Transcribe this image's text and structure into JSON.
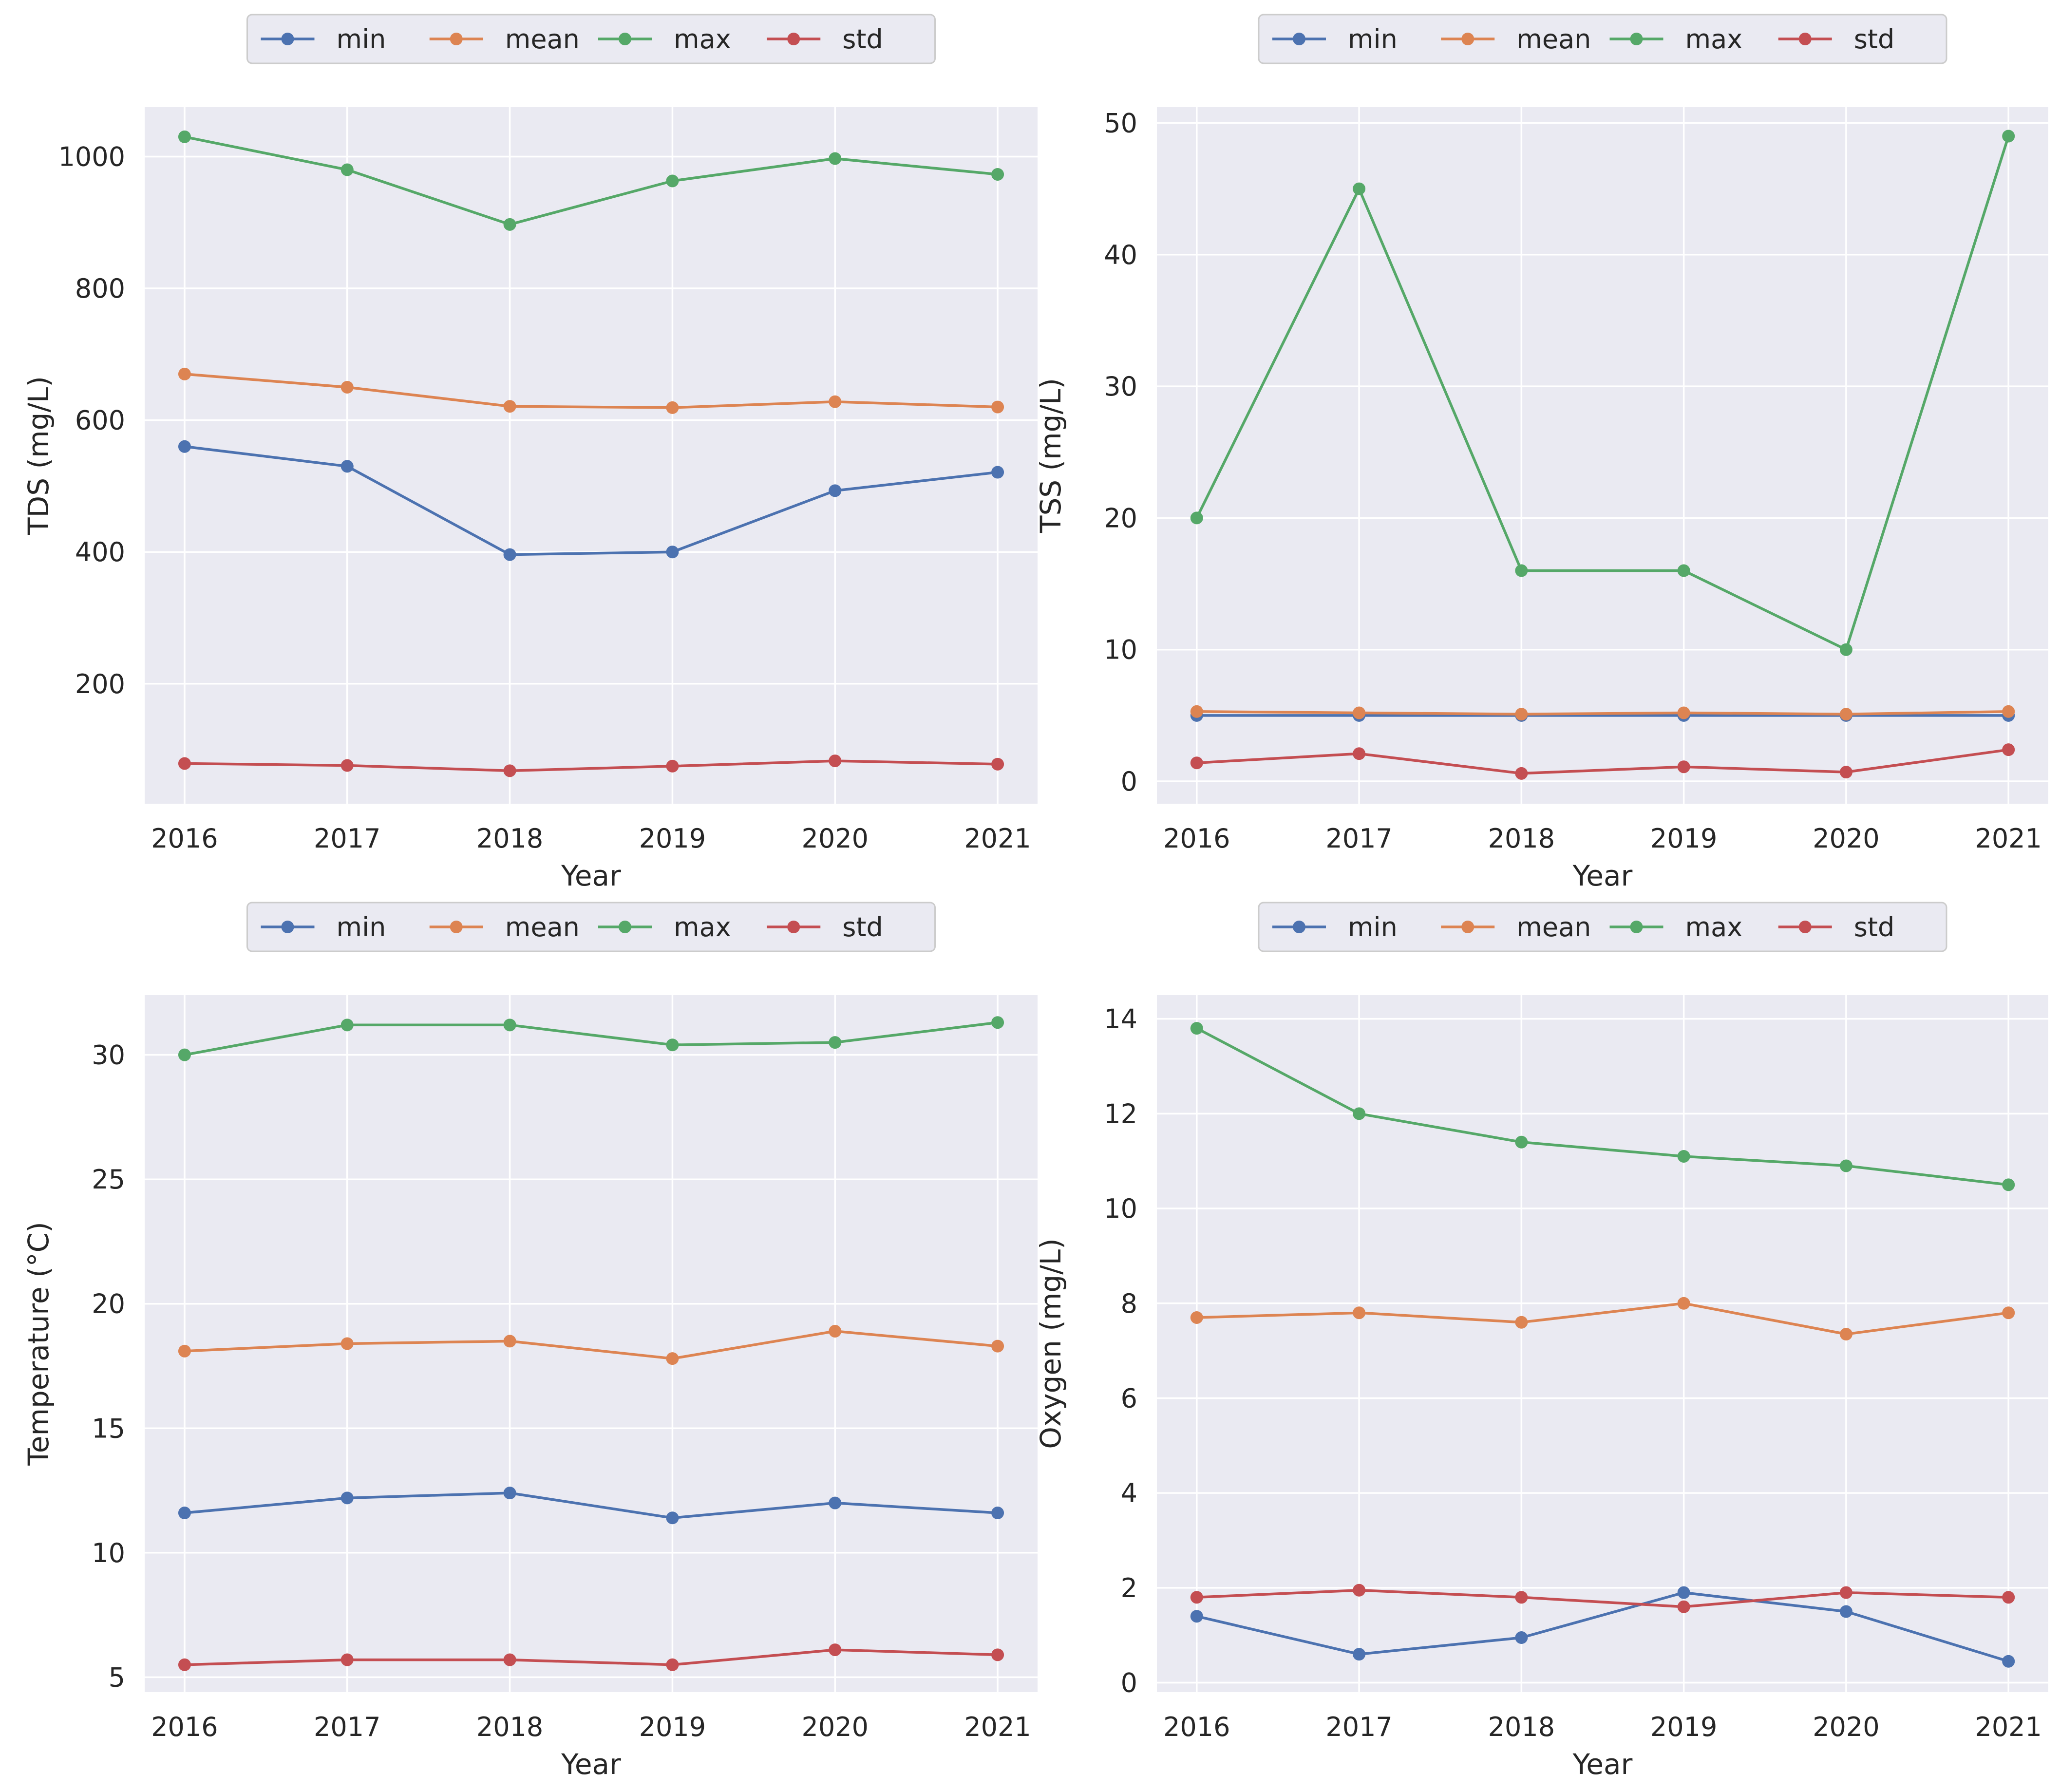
{
  "colors": {
    "plot_background": "#eaeaf2",
    "grid": "#ffffff",
    "text": "#262626",
    "legend_background": "#eaeaf2",
    "legend_border": "#cccccc",
    "series": {
      "min": "#4c72b0",
      "mean": "#dd8452",
      "max": "#55a868",
      "std": "#c44e52"
    }
  },
  "chart_data": [
    {
      "type": "line",
      "xlabel": "Year",
      "ylabel": "TDS (mg/L)",
      "x": [
        "2016",
        "2017",
        "2018",
        "2019",
        "2020",
        "2021"
      ],
      "yticks": [
        200,
        400,
        600,
        800,
        1000
      ],
      "ylim": [
        18,
        1075
      ],
      "legend": [
        "min",
        "mean",
        "max",
        "std"
      ],
      "legend_position": "top-center",
      "series": [
        {
          "name": "min",
          "values": [
            560,
            530,
            396,
            400,
            493,
            521
          ]
        },
        {
          "name": "mean",
          "values": [
            670,
            650,
            621,
            619,
            628,
            620
          ]
        },
        {
          "name": "max",
          "values": [
            1030,
            980,
            897,
            963,
            997,
            973
          ]
        },
        {
          "name": "std",
          "values": [
            79,
            76,
            68,
            75,
            83,
            78
          ]
        }
      ]
    },
    {
      "type": "line",
      "xlabel": "Year",
      "ylabel": "TSS (mg/L)",
      "x": [
        "2016",
        "2017",
        "2018",
        "2019",
        "2020",
        "2021"
      ],
      "yticks": [
        0,
        10,
        20,
        30,
        40,
        50
      ],
      "ylim": [
        -1.7,
        51.2
      ],
      "legend": [
        "min",
        "mean",
        "max",
        "std"
      ],
      "legend_position": "top-center",
      "series": [
        {
          "name": "min",
          "values": [
            5.0,
            5.0,
            5.0,
            5.0,
            5.0,
            5.0
          ]
        },
        {
          "name": "mean",
          "values": [
            5.3,
            5.2,
            5.1,
            5.2,
            5.1,
            5.3
          ]
        },
        {
          "name": "max",
          "values": [
            20,
            45,
            16,
            16,
            10,
            49
          ]
        },
        {
          "name": "std",
          "values": [
            1.4,
            2.1,
            0.6,
            1.1,
            0.7,
            2.4
          ]
        }
      ]
    },
    {
      "type": "line",
      "xlabel": "Year",
      "ylabel": "Temperature (°C)",
      "x": [
        "2016",
        "2017",
        "2018",
        "2019",
        "2020",
        "2021"
      ],
      "yticks": [
        5,
        10,
        15,
        20,
        25,
        30
      ],
      "ylim": [
        4.4,
        32.4
      ],
      "legend": [
        "min",
        "mean",
        "max",
        "std"
      ],
      "legend_position": "top-center",
      "series": [
        {
          "name": "min",
          "values": [
            11.6,
            12.2,
            12.4,
            11.4,
            12.0,
            11.6
          ]
        },
        {
          "name": "mean",
          "values": [
            18.1,
            18.4,
            18.5,
            17.8,
            18.9,
            18.3
          ]
        },
        {
          "name": "max",
          "values": [
            30.0,
            31.2,
            31.2,
            30.4,
            30.5,
            31.3
          ]
        },
        {
          "name": "std",
          "values": [
            5.5,
            5.7,
            5.7,
            5.5,
            6.1,
            5.9
          ]
        }
      ]
    },
    {
      "type": "line",
      "xlabel": "Year",
      "ylabel": "Oxygen (mg/L)",
      "x": [
        "2016",
        "2017",
        "2018",
        "2019",
        "2020",
        "2021"
      ],
      "yticks": [
        0,
        2,
        4,
        6,
        8,
        10,
        12,
        14
      ],
      "ylim": [
        -0.2,
        14.5
      ],
      "legend": [
        "min",
        "mean",
        "max",
        "std"
      ],
      "legend_position": "top-center",
      "series": [
        {
          "name": "min",
          "values": [
            1.4,
            0.6,
            0.95,
            1.9,
            1.5,
            0.45
          ]
        },
        {
          "name": "mean",
          "values": [
            7.7,
            7.8,
            7.6,
            8.0,
            7.35,
            7.8
          ]
        },
        {
          "name": "max",
          "values": [
            13.8,
            12.0,
            11.4,
            11.1,
            10.9,
            10.5
          ]
        },
        {
          "name": "std",
          "values": [
            1.8,
            1.95,
            1.8,
            1.6,
            1.9,
            1.8
          ]
        }
      ]
    }
  ]
}
